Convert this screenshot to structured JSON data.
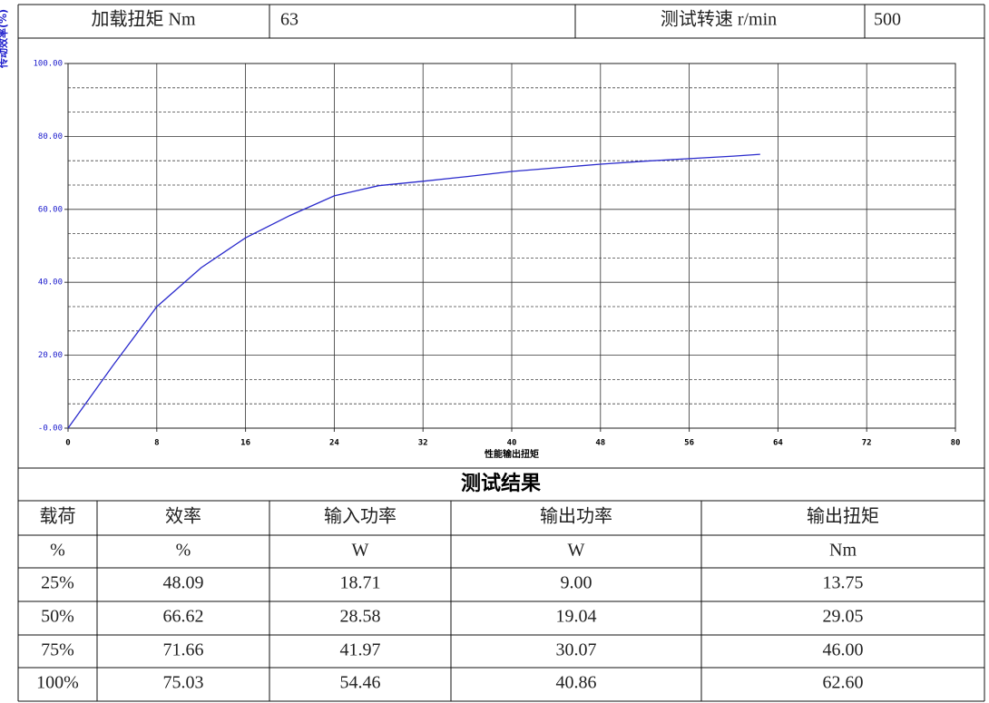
{
  "header": {
    "cells": [
      "加载扭矩 Nm",
      "63",
      "测试转速 r/min",
      "500"
    ]
  },
  "chart_data": {
    "type": "line",
    "y_label": "传动效率(%)",
    "x_label": "性能输出扭矩",
    "x": [
      0,
      4,
      8,
      12,
      16,
      20,
      24,
      28,
      32,
      36,
      40,
      44,
      48,
      52,
      56,
      60,
      62.4
    ],
    "values": [
      0,
      17,
      33.3,
      44,
      52.2,
      58.3,
      63.7,
      66.5,
      67.7,
      69,
      70.4,
      71.4,
      72.4,
      73.2,
      73.9,
      74.6,
      75.1
    ],
    "color": "#2a2acc",
    "xlim": [
      0,
      80
    ],
    "xticks": [
      0,
      8,
      16,
      24,
      32,
      40,
      48,
      56,
      64,
      72,
      80
    ],
    "ylim": [
      0,
      100
    ],
    "yticks": [
      {
        "value": 0,
        "label": "-0.00"
      },
      {
        "value": 20,
        "label": "20.00"
      },
      {
        "value": 40,
        "label": "40.00"
      },
      {
        "value": 60,
        "label": "60.00"
      },
      {
        "value": 80,
        "label": "80.00"
      },
      {
        "value": 100,
        "label": "100.00"
      }
    ],
    "grid": true
  },
  "results": {
    "title": "测试结果",
    "columns": [
      "载荷",
      "效率",
      "输入功率",
      "输出功率",
      "输出扭矩"
    ],
    "units": [
      "%",
      "%",
      "W",
      "W",
      "Nm"
    ],
    "rows": [
      [
        "25%",
        "48.09",
        "18.71",
        "9.00",
        "13.75"
      ],
      [
        "50%",
        "66.62",
        "28.58",
        "19.04",
        "29.05"
      ],
      [
        "75%",
        "71.66",
        "41.97",
        "30.07",
        "46.00"
      ],
      [
        "100%",
        "75.03",
        "54.46",
        "40.86",
        "62.60"
      ]
    ]
  }
}
